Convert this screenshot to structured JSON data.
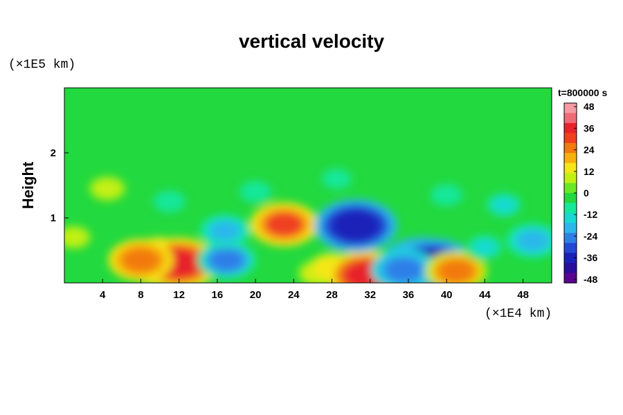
{
  "chart_data": {
    "type": "heatmap",
    "title": "vertical velocity",
    "xlabel": "",
    "ylabel": "Height",
    "x_unit": "(×1E4 km)",
    "y_unit": "(×1E5 km)",
    "time_label": "t=800000 s",
    "xlim": [
      0,
      51
    ],
    "ylim": [
      0,
      3
    ],
    "x_ticks": [
      4,
      8,
      12,
      16,
      20,
      24,
      28,
      32,
      36,
      40,
      44,
      48
    ],
    "y_ticks": [
      1,
      2
    ],
    "colorbar": {
      "range": [
        -50,
        50
      ],
      "ticks": [
        48,
        36,
        24,
        12,
        0,
        -12,
        -24,
        -36,
        -48
      ],
      "colors": [
        "#f39aa5",
        "#f06a75",
        "#e8222a",
        "#f04020",
        "#f27a0e",
        "#f7b00c",
        "#f5e617",
        "#c3f013",
        "#6ae823",
        "#22d93f",
        "#14e89a",
        "#17d9d2",
        "#2bb7ea",
        "#2f7fe8",
        "#2447d6",
        "#1a20b8",
        "#2a0ea0",
        "#5a0590"
      ]
    },
    "features": [
      {
        "x": 10.0,
        "y": 0.33,
        "value": 34
      },
      {
        "x": 12.0,
        "y": 0.3,
        "value": 38
      },
      {
        "x": 8.0,
        "y": 0.35,
        "value": 28
      },
      {
        "x": 17.0,
        "y": 0.35,
        "value": -24
      },
      {
        "x": 16.8,
        "y": 0.8,
        "value": -18
      },
      {
        "x": 23.0,
        "y": 0.9,
        "value": 30
      },
      {
        "x": 26.5,
        "y": 0.15,
        "value": 12
      },
      {
        "x": 28.0,
        "y": 0.22,
        "value": 16
      },
      {
        "x": 31.5,
        "y": 0.12,
        "value": 36
      },
      {
        "x": 30.5,
        "y": 0.88,
        "value": -40
      },
      {
        "x": 37.5,
        "y": 0.28,
        "value": -42
      },
      {
        "x": 38.5,
        "y": 0.25,
        "value": -44
      },
      {
        "x": 35.5,
        "y": 0.2,
        "value": -28
      },
      {
        "x": 41.0,
        "y": 0.18,
        "value": 26
      },
      {
        "x": 49.0,
        "y": 0.65,
        "value": -20
      },
      {
        "x": 1.0,
        "y": 0.7,
        "value": 8
      },
      {
        "x": 4.5,
        "y": 1.45,
        "value": 10
      },
      {
        "x": 11.0,
        "y": 1.25,
        "value": -10
      },
      {
        "x": 20.0,
        "y": 1.4,
        "value": -10
      },
      {
        "x": 28.5,
        "y": 1.6,
        "value": -8
      },
      {
        "x": 40.0,
        "y": 1.35,
        "value": -10
      },
      {
        "x": 46.0,
        "y": 1.2,
        "value": -12
      },
      {
        "x": 44.0,
        "y": 0.55,
        "value": -12
      }
    ]
  }
}
